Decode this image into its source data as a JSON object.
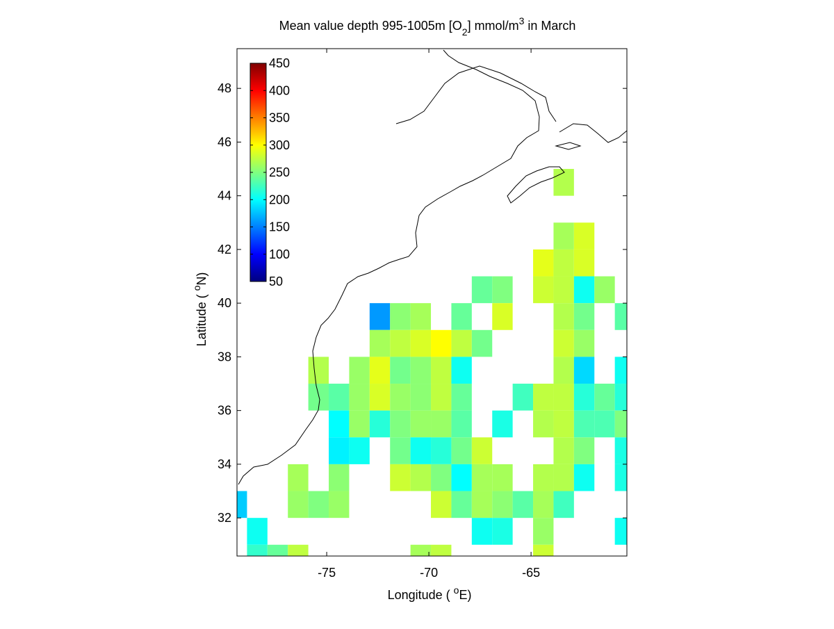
{
  "chart_data": {
    "type": "heatmap",
    "title": [
      "Mean value depth 995-1005m [O",
      "2",
      "] mmol/m",
      "3",
      " in March"
    ],
    "xlabel": [
      "Longitude ( ",
      "o",
      "E)"
    ],
    "ylabel": [
      "Latitude ( ",
      "o",
      "N)"
    ],
    "xlim": [
      -79.39,
      -60.31
    ],
    "ylim": [
      30.58,
      49.48
    ],
    "xticks": [
      -75,
      -70,
      -65
    ],
    "yticks": [
      32,
      34,
      36,
      38,
      40,
      42,
      44,
      46,
      48
    ],
    "cell_width": 1,
    "cell_height": 1,
    "colormap": "jet",
    "clim": [
      50,
      450
    ],
    "colorbar_ticks": [
      50,
      100,
      150,
      200,
      250,
      300,
      350,
      400,
      450
    ],
    "x": [
      -63.4,
      -63.4,
      -62.4,
      -64.4,
      -63.4,
      -62.4,
      -67.4,
      -66.4,
      -64.4,
      -63.4,
      -62.4,
      -61.4,
      -72.4,
      -71.4,
      -70.4,
      -68.4,
      -66.4,
      -63.4,
      -62.4,
      -60.4,
      -72.4,
      -71.4,
      -70.4,
      -69.4,
      -68.4,
      -67.4,
      -63.4,
      -62.4,
      -75.4,
      -73.4,
      -72.4,
      -71.4,
      -70.4,
      -69.4,
      -68.4,
      -63.4,
      -62.4,
      -60.4,
      -75.4,
      -74.4,
      -73.4,
      -72.4,
      -71.4,
      -70.4,
      -69.4,
      -68.4,
      -65.4,
      -64.4,
      -63.4,
      -62.4,
      -61.4,
      -60.4,
      -74.4,
      -73.4,
      -72.4,
      -71.4,
      -70.4,
      -69.4,
      -68.4,
      -66.4,
      -64.4,
      -63.4,
      -62.4,
      -61.4,
      -60.4,
      -74.4,
      -73.4,
      -71.4,
      -70.4,
      -69.4,
      -68.4,
      -67.4,
      -63.4,
      -62.4,
      -60.4,
      -76.4,
      -74.4,
      -71.4,
      -70.4,
      -69.4,
      -68.4,
      -67.4,
      -66.4,
      -64.4,
      -63.4,
      -62.4,
      -60.4,
      -79.4,
      -76.4,
      -75.4,
      -74.4,
      -69.4,
      -68.4,
      -67.4,
      -66.4,
      -65.4,
      -64.4,
      -63.4,
      -78.4,
      -67.4,
      -66.4,
      -64.4,
      -60.4,
      -78.4,
      -77.4,
      -76.4,
      -70.4,
      -69.4,
      -64.4
    ],
    "y": [
      44.5,
      42.5,
      42.5,
      41.5,
      41.5,
      41.5,
      40.5,
      40.5,
      40.5,
      40.5,
      40.5,
      40.5,
      39.5,
      39.5,
      39.5,
      39.5,
      39.5,
      39.5,
      39.5,
      39.5,
      38.5,
      38.5,
      38.5,
      38.5,
      38.5,
      38.5,
      38.5,
      38.5,
      37.5,
      37.5,
      37.5,
      37.5,
      37.5,
      37.5,
      37.5,
      37.5,
      37.5,
      37.5,
      36.5,
      36.5,
      36.5,
      36.5,
      36.5,
      36.5,
      36.5,
      36.5,
      36.5,
      36.5,
      36.5,
      36.5,
      36.5,
      36.5,
      35.5,
      35.5,
      35.5,
      35.5,
      35.5,
      35.5,
      35.5,
      35.5,
      35.5,
      35.5,
      35.5,
      35.5,
      35.5,
      34.5,
      34.5,
      34.5,
      34.5,
      34.5,
      34.5,
      34.5,
      34.5,
      34.5,
      34.5,
      33.5,
      33.5,
      33.5,
      33.5,
      33.5,
      33.5,
      33.5,
      33.5,
      33.5,
      33.5,
      33.5,
      33.5,
      32.5,
      32.5,
      32.5,
      32.5,
      32.5,
      32.5,
      32.5,
      32.5,
      32.5,
      32.5,
      32.5,
      31.5,
      31.5,
      31.5,
      31.5,
      31.5,
      30.5,
      30.5,
      30.5,
      30.5,
      30.5,
      30.5
    ],
    "values": [
      270,
      265,
      285,
      290,
      275,
      285,
      240,
      250,
      280,
      275,
      205,
      260,
      160,
      255,
      265,
      240,
      285,
      270,
      245,
      235,
      265,
      275,
      285,
      300,
      275,
      245,
      280,
      260,
      270,
      260,
      290,
      245,
      255,
      275,
      205,
      270,
      185,
      205,
      245,
      235,
      260,
      285,
      260,
      255,
      275,
      240,
      225,
      275,
      275,
      215,
      240,
      215,
      200,
      260,
      215,
      250,
      260,
      260,
      235,
      210,
      270,
      275,
      230,
      230,
      250,
      195,
      205,
      245,
      205,
      215,
      245,
      280,
      270,
      250,
      210,
      265,
      255,
      280,
      270,
      250,
      200,
      265,
      265,
      270,
      270,
      205,
      210,
      180,
      260,
      250,
      260,
      280,
      240,
      265,
      255,
      235,
      265,
      225,
      205,
      205,
      210,
      260,
      205,
      220,
      240,
      275,
      265,
      275,
      280
    ]
  }
}
